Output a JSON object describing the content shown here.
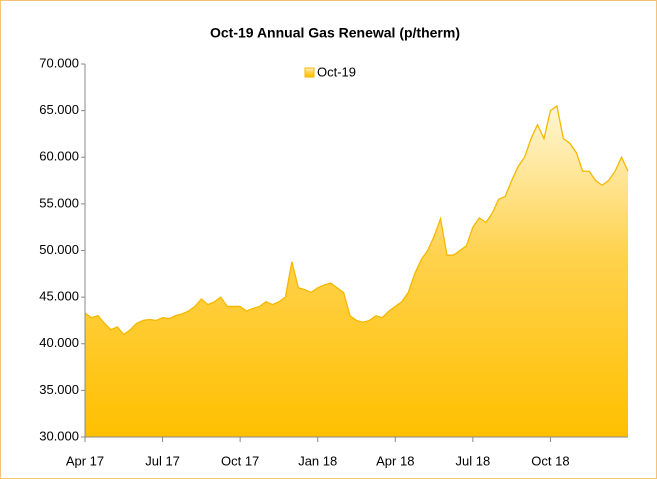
{
  "chart_data": {
    "type": "area",
    "title": "Oct-19 Annual Gas Renewal (p/therm)",
    "categories": [
      "Apr 17",
      null,
      null,
      null,
      null,
      null,
      null,
      null,
      null,
      null,
      null,
      null,
      "Jul 17",
      null,
      null,
      null,
      null,
      null,
      null,
      null,
      null,
      null,
      null,
      null,
      "Oct 17",
      null,
      null,
      null,
      null,
      null,
      null,
      null,
      null,
      null,
      null,
      null,
      "Jan 18",
      null,
      null,
      null,
      null,
      null,
      null,
      null,
      null,
      null,
      null,
      null,
      "Apr 18",
      null,
      null,
      null,
      null,
      null,
      null,
      null,
      null,
      null,
      null,
      null,
      "Jul 18",
      null,
      null,
      null,
      null,
      null,
      null,
      null,
      null,
      null,
      null,
      null,
      "Oct 18",
      null,
      null,
      null,
      null,
      null,
      null,
      null,
      null,
      null,
      null,
      null,
      null
    ],
    "series": [
      {
        "name": "Oct-19",
        "color": "#f5b800",
        "values": [
          43.3,
          42.8,
          43.0,
          42.2,
          41.5,
          41.8,
          41.0,
          41.5,
          42.2,
          42.5,
          42.6,
          42.5,
          42.8,
          42.7,
          43.0,
          43.2,
          43.5,
          44.0,
          44.8,
          44.2,
          44.5,
          45.0,
          44.0,
          44.0,
          44.0,
          43.5,
          43.8,
          44.0,
          44.5,
          44.2,
          44.5,
          45.0,
          48.8,
          46.0,
          45.8,
          45.5,
          46.0,
          46.3,
          46.5,
          46.0,
          45.5,
          43.0,
          42.5,
          42.3,
          42.5,
          43.0,
          42.8,
          43.5,
          44.0,
          44.5,
          45.5,
          47.5,
          49.0,
          50.0,
          51.5,
          53.4,
          49.5,
          49.5,
          50.0,
          50.5,
          52.5,
          53.5,
          53.0,
          54.0,
          55.5,
          55.8,
          57.5,
          59.0,
          60.0,
          62.0,
          63.5,
          62.0,
          65.0,
          65.5,
          62.0,
          61.5,
          60.5,
          58.5,
          58.5,
          57.5,
          57.0,
          57.5,
          58.5,
          60.0,
          58.5
        ]
      }
    ],
    "ylim": [
      30,
      70
    ],
    "yticks": [
      {
        "value": 30,
        "label": "30.000"
      },
      {
        "value": 35,
        "label": "35.000"
      },
      {
        "value": 40,
        "label": "40.000"
      },
      {
        "value": 45,
        "label": "45.000"
      },
      {
        "value": 50,
        "label": "50.000"
      },
      {
        "value": 55,
        "label": "55.000"
      },
      {
        "value": 60,
        "label": "60.000"
      },
      {
        "value": 65,
        "label": "65.000"
      },
      {
        "value": 70,
        "label": "70.000"
      }
    ],
    "legend": "top"
  }
}
